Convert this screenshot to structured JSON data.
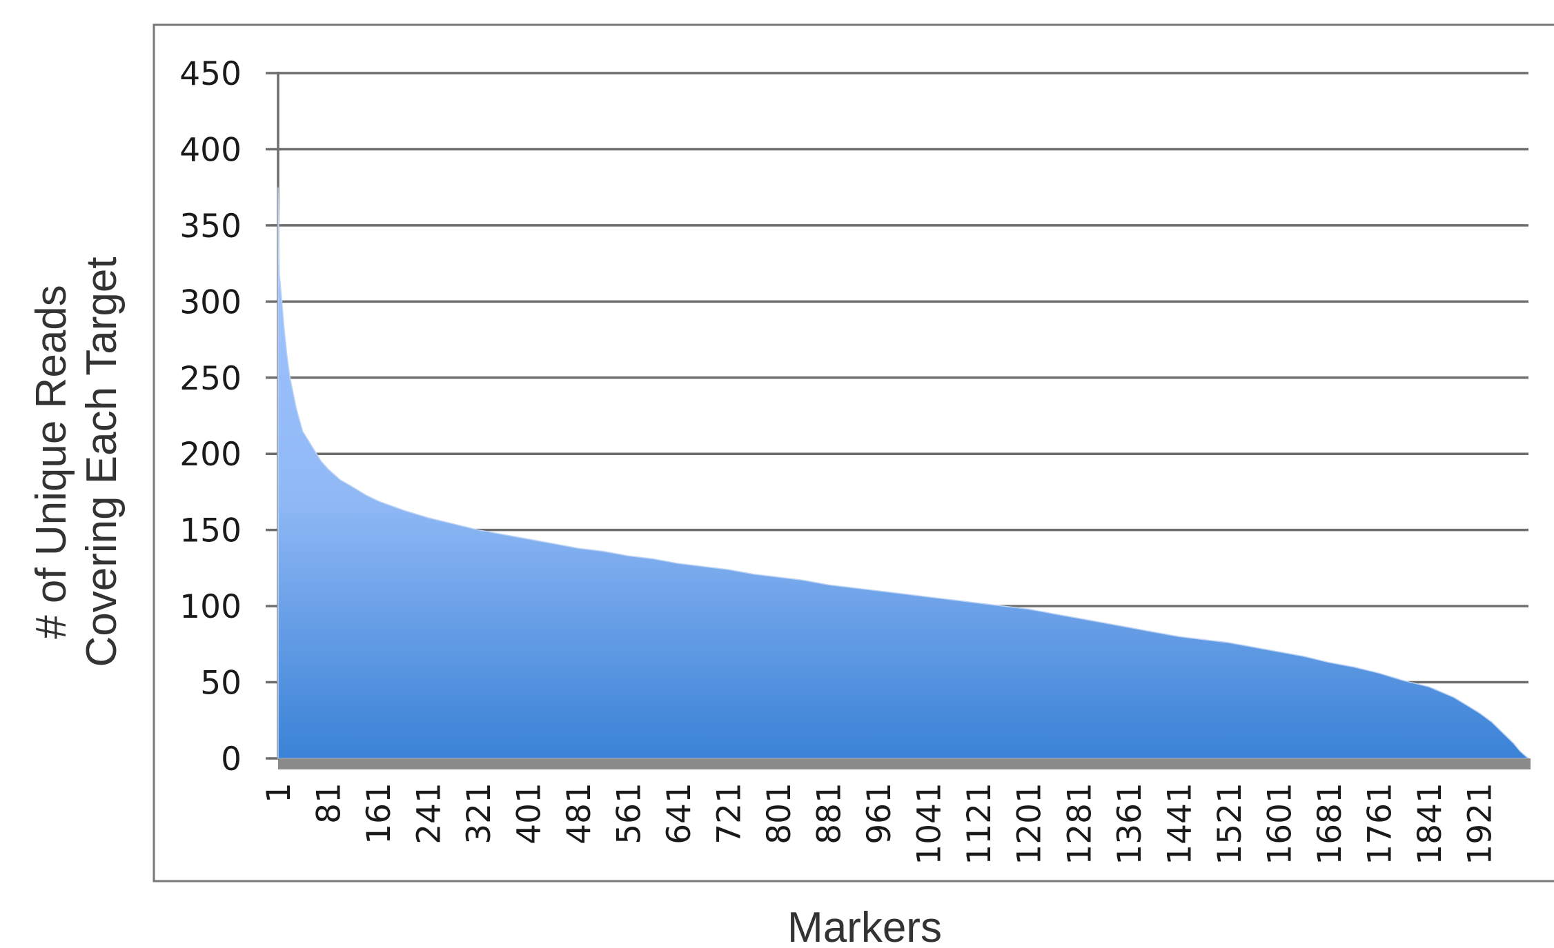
{
  "chart_data": {
    "type": "area",
    "title": "",
    "xlabel": "Markers",
    "ylabel_lines": [
      "# of Unique Reads",
      "Covering Each Target"
    ],
    "ylim": [
      0,
      450
    ],
    "y_ticks": [
      0,
      50,
      100,
      150,
      200,
      250,
      300,
      350,
      400,
      450
    ],
    "x_range": [
      1,
      2000
    ],
    "x_ticks": [
      1,
      81,
      161,
      241,
      321,
      401,
      481,
      561,
      641,
      721,
      801,
      881,
      961,
      1041,
      1121,
      1201,
      1281,
      1361,
      1441,
      1521,
      1601,
      1681,
      1761,
      1841,
      1921
    ],
    "grid": true,
    "legend": "none",
    "colors": {
      "fill_top": "#a6c8ff",
      "fill_bottom": "#3a82d6",
      "gridline": "#6e6e6e",
      "baseline": "#8a8a8a",
      "frame": "#777777"
    },
    "series": [
      {
        "x": [
          1,
          3,
          6,
          10,
          15,
          20,
          30,
          40,
          55,
          70,
          81,
          100,
          121,
          141,
          161,
          201,
          241,
          281,
          321,
          361,
          401,
          441,
          481,
          521,
          561,
          601,
          641,
          681,
          721,
          761,
          801,
          841,
          881,
          921,
          961,
          1001,
          1041,
          1081,
          1121,
          1161,
          1201,
          1241,
          1281,
          1321,
          1361,
          1401,
          1441,
          1481,
          1521,
          1561,
          1601,
          1641,
          1681,
          1721,
          1761,
          1801,
          1841,
          1881,
          1921,
          1941,
          1961,
          1976,
          1986,
          1994,
          2000
        ],
        "values": [
          375,
          318,
          305,
          285,
          265,
          250,
          230,
          215,
          205,
          195,
          190,
          183,
          178,
          173,
          169,
          163,
          158,
          154,
          150,
          147,
          144,
          141,
          138,
          136,
          133,
          131,
          128,
          126,
          124,
          121,
          119,
          117,
          114,
          112,
          110,
          108,
          106,
          104,
          102,
          100,
          98,
          95,
          92,
          89,
          86,
          83,
          80,
          78,
          76,
          73,
          70,
          67,
          63,
          60,
          56,
          51,
          47,
          40,
          30,
          24,
          16,
          10,
          5,
          2,
          0
        ]
      }
    ]
  }
}
